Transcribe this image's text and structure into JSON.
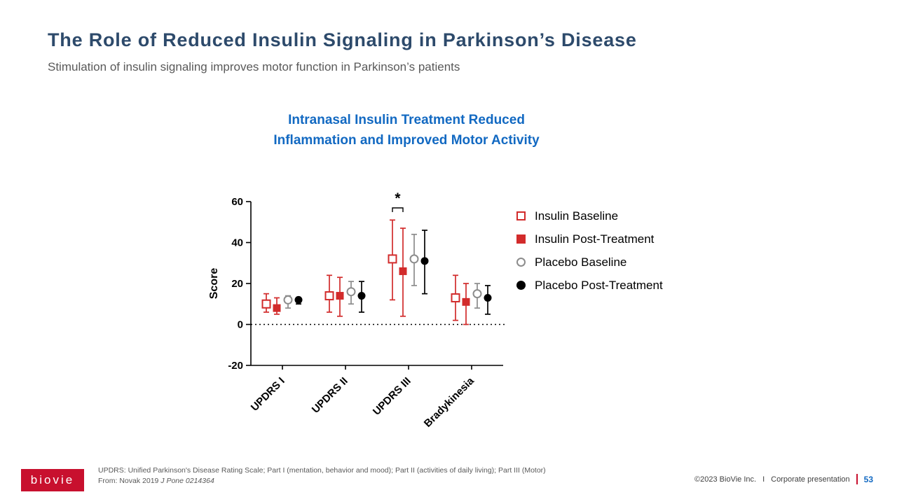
{
  "slide": {
    "title": "The Role of Reduced Insulin Signaling in Parkinson’s Disease",
    "subtitle": "Stimulation of insulin signaling improves motor function in Parkinson’s patients",
    "logo_text": "biovie",
    "footnote_line1": "UPDRS: Unified Parkinson's Disease Rating Scale; Part I (mentation, behavior and mood); Part II (activities of daily living); Part III (Motor)",
    "footnote_line2_prefix": "From: Novak 2019 ",
    "footnote_line2_italic": "J Pone 0214364",
    "footer_copyright": "©2023 BioVie Inc.",
    "footer_separator": "I",
    "footer_label": "Corporate presentation",
    "page_number": "53",
    "brand_red": "#c8102e",
    "accent_blue": "#1269c2",
    "title_navy": "#2d4a6b"
  },
  "chart_title": {
    "line1": "Intranasal Insulin Treatment Reduced",
    "line2": "Inflammation and Improved Motor Activity"
  },
  "chart_data": {
    "type": "scatter",
    "title": "Intranasal Insulin Treatment Reduced Inflammation and Improved Motor Activity",
    "xlabel": "",
    "ylabel": "Score",
    "ylim": [
      -20,
      60
    ],
    "yticks": [
      -20,
      0,
      20,
      40,
      60
    ],
    "zero_line": "dotted",
    "grid": false,
    "legend_position": "right",
    "categories": [
      "UPDRS I",
      "UPDRS II",
      "UPDRS III",
      "Bradykinesia"
    ],
    "series": [
      {
        "name": "Insulin Baseline",
        "marker": "open-square",
        "color": "#d22b2b",
        "values": [
          10,
          14,
          32,
          13
        ],
        "err_low": [
          6,
          6,
          12,
          2
        ],
        "err_high": [
          15,
          24,
          51,
          24
        ]
      },
      {
        "name": "Insulin Post-Treatment",
        "marker": "filled-square",
        "color": "#d22b2b",
        "values": [
          8,
          14,
          26,
          11
        ],
        "err_low": [
          5,
          4,
          4,
          0
        ],
        "err_high": [
          13,
          23,
          47,
          20
        ]
      },
      {
        "name": "Placebo Baseline",
        "marker": "open-circle",
        "color": "#8c8c8c",
        "values": [
          12,
          16,
          32,
          15
        ],
        "err_low": [
          8,
          10,
          19,
          8
        ],
        "err_high": [
          14,
          21,
          44,
          20
        ]
      },
      {
        "name": "Placebo Post-Treatment",
        "marker": "filled-circle",
        "color": "#000000",
        "values": [
          12,
          14,
          31,
          13
        ],
        "err_low": [
          10,
          6,
          15,
          5
        ],
        "err_high": [
          13,
          21,
          46,
          19
        ]
      }
    ],
    "significance": {
      "category": "UPDRS III",
      "between": [
        "Insulin Baseline",
        "Insulin Post-Treatment"
      ],
      "label": "*"
    }
  }
}
